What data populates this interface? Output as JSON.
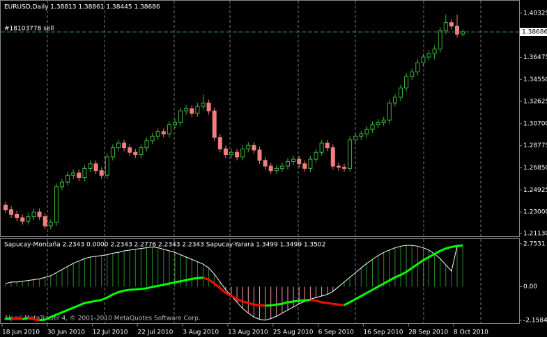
{
  "chart_data": {
    "type": "candlestick",
    "title": "EURUSD,Daily  1.38813 1.38861 1.38445 1.38686",
    "up_color": "#3cb43c",
    "down_color": "#f08080",
    "categories": [
      "18 Jun 2010",
      null,
      null,
      null,
      null,
      null,
      null,
      null,
      "30 Jun 2010",
      null,
      null,
      null,
      null,
      null,
      null,
      null,
      "12 Jul 2010",
      null,
      null,
      null,
      null,
      null,
      null,
      null,
      "22 Jul 2010",
      null,
      null,
      null,
      null,
      null,
      null,
      null,
      "3 Aug 2010",
      null,
      null,
      null,
      null,
      null,
      null,
      null,
      "13 Aug 2010",
      null,
      null,
      null,
      null,
      null,
      null,
      null,
      "25 Aug 2010",
      null,
      null,
      null,
      null,
      null,
      null,
      null,
      "6 Sep 2010",
      null,
      null,
      null,
      null,
      null,
      null,
      null,
      "16 Sep 2010",
      null,
      null,
      null,
      null,
      null,
      null,
      null,
      "28 Sep 2010",
      null,
      null,
      null,
      null,
      null,
      null,
      null,
      "8 Oct 2010",
      null
    ],
    "open": [
      1.236,
      1.232,
      1.228,
      1.225,
      1.222,
      1.226,
      1.23,
      1.226,
      1.218,
      1.221,
      1.252,
      1.256,
      1.262,
      1.264,
      1.26,
      1.268,
      1.272,
      1.266,
      1.262,
      1.278,
      1.286,
      1.29,
      1.286,
      1.282,
      1.28,
      1.286,
      1.292,
      1.296,
      1.3,
      1.298,
      1.306,
      1.308,
      1.318,
      1.32,
      1.316,
      1.322,
      1.325,
      1.318,
      1.295,
      1.285,
      1.28,
      1.282,
      1.278,
      1.285,
      1.288,
      1.284,
      1.275,
      1.27,
      1.266,
      1.268,
      1.27,
      1.274,
      1.276,
      1.272,
      1.268,
      1.276,
      1.282,
      1.29,
      1.286,
      1.27,
      1.269,
      1.268,
      1.293,
      1.296,
      1.298,
      1.302,
      1.306,
      1.308,
      1.31,
      1.325,
      1.33,
      1.338,
      1.348,
      1.352,
      1.36,
      1.365,
      1.368,
      1.372,
      1.388,
      1.395,
      1.392,
      1.385
    ],
    "high": [
      1.239,
      1.235,
      1.231,
      1.228,
      1.229,
      1.233,
      1.233,
      1.229,
      1.224,
      1.255,
      1.259,
      1.265,
      1.267,
      1.267,
      1.271,
      1.275,
      1.275,
      1.269,
      1.281,
      1.289,
      1.293,
      1.293,
      1.289,
      1.285,
      1.289,
      1.295,
      1.299,
      1.303,
      1.303,
      1.309,
      1.311,
      1.321,
      1.323,
      1.323,
      1.325,
      1.332,
      1.328,
      1.321,
      1.298,
      1.288,
      1.285,
      1.285,
      1.288,
      1.291,
      1.291,
      1.287,
      1.278,
      1.273,
      1.271,
      1.273,
      1.277,
      1.279,
      1.279,
      1.275,
      1.279,
      1.285,
      1.293,
      1.293,
      1.289,
      1.273,
      1.272,
      1.296,
      1.299,
      1.301,
      1.305,
      1.309,
      1.311,
      1.313,
      1.328,
      1.333,
      1.341,
      1.351,
      1.355,
      1.363,
      1.368,
      1.371,
      1.375,
      1.391,
      1.402,
      1.398,
      1.402,
      1.389
    ],
    "low": [
      1.229,
      1.225,
      1.222,
      1.219,
      1.219,
      1.223,
      1.223,
      1.215,
      1.215,
      1.218,
      1.249,
      1.253,
      1.259,
      1.257,
      1.257,
      1.265,
      1.263,
      1.259,
      1.259,
      1.275,
      1.283,
      1.283,
      1.279,
      1.277,
      1.277,
      1.283,
      1.289,
      1.293,
      1.295,
      1.295,
      1.303,
      1.305,
      1.315,
      1.313,
      1.313,
      1.319,
      1.315,
      1.292,
      1.282,
      1.277,
      1.277,
      1.275,
      1.275,
      1.282,
      1.281,
      1.272,
      1.267,
      1.263,
      1.263,
      1.265,
      1.267,
      1.271,
      1.269,
      1.265,
      1.265,
      1.273,
      1.279,
      1.283,
      1.267,
      1.266,
      1.265,
      1.265,
      1.29,
      1.293,
      1.295,
      1.299,
      1.303,
      1.305,
      1.307,
      1.322,
      1.327,
      1.335,
      1.345,
      1.349,
      1.357,
      1.362,
      1.363,
      1.369,
      1.385,
      1.389,
      1.382,
      1.383
    ],
    "close": [
      1.232,
      1.228,
      1.225,
      1.222,
      1.226,
      1.23,
      1.226,
      1.218,
      1.221,
      1.252,
      1.256,
      1.262,
      1.264,
      1.26,
      1.268,
      1.272,
      1.266,
      1.262,
      1.278,
      1.286,
      1.29,
      1.286,
      1.282,
      1.28,
      1.286,
      1.292,
      1.296,
      1.3,
      1.298,
      1.306,
      1.308,
      1.318,
      1.32,
      1.316,
      1.322,
      1.325,
      1.318,
      1.295,
      1.285,
      1.28,
      1.282,
      1.278,
      1.285,
      1.288,
      1.284,
      1.275,
      1.27,
      1.266,
      1.268,
      1.27,
      1.274,
      1.276,
      1.272,
      1.268,
      1.276,
      1.282,
      1.29,
      1.286,
      1.27,
      1.269,
      1.268,
      1.293,
      1.296,
      1.298,
      1.302,
      1.306,
      1.308,
      1.31,
      1.325,
      1.33,
      1.338,
      1.348,
      1.352,
      1.36,
      1.365,
      1.368,
      1.372,
      1.388,
      1.395,
      1.392,
      1.385,
      1.387
    ],
    "ylim": [
      1.2089,
      1.4141
    ],
    "yticks": [
      1.40325,
      1.36475,
      {
        "value": 1.3455,
        "label": "1.34550"
      },
      1.32625,
      {
        "value": 1.307,
        "label": "1.30700"
      },
      1.28775,
      {
        "value": 1.2685,
        "label": "1.26850"
      },
      1.24925,
      {
        "value": 1.23,
        "label": "1.23000"
      },
      {
        "value": 1.2113,
        "label": "1.21130"
      }
    ],
    "order_line": {
      "label": "#18103778 sell",
      "price": 1.38686,
      "color": "#2e8b57"
    },
    "indicator": {
      "legend": "Sapucay-Montaña 2.2343 0.0000 2.2343 2.2776 2.2343 2.2343  Sapucay-Yarara 1.3499 1.3499 1.3502",
      "copyright": "Alpari MetaTrader 4, © 2001-2010 MetaQuotes Software Corp.",
      "ylim": [
        -2.34,
        3.06
      ],
      "yticks": [
        2.7531,
        {
          "value": 0,
          "label": "0.00"
        },
        -2.1584
      ],
      "pos_color": "#2e8b2e",
      "neg_color": "#f4a0a0",
      "series": [
        {
          "name": "Sapucay-Montaña",
          "color": "#ffffff",
          "values": [
            0.2,
            0.3,
            0.3,
            0.35,
            0.4,
            0.45,
            0.5,
            0.6,
            0.7,
            0.9,
            1.1,
            1.3,
            1.5,
            1.65,
            1.8,
            1.9,
            1.95,
            2.0,
            2.05,
            2.15,
            2.2,
            2.3,
            2.35,
            2.4,
            2.45,
            2.5,
            2.55,
            2.5,
            2.4,
            2.3,
            2.2,
            2.05,
            1.9,
            1.75,
            1.6,
            1.45,
            1.2,
            0.8,
            0.3,
            -0.2,
            -0.6,
            -1.0,
            -1.4,
            -1.7,
            -1.95,
            -2.1,
            -2.15,
            -2.05,
            -1.9,
            -1.7,
            -1.5,
            -1.3,
            -1.1,
            -0.95,
            -0.8,
            -0.7,
            -0.6,
            -0.5,
            -0.3,
            0.0,
            0.3,
            0.6,
            0.9,
            1.2,
            1.5,
            1.75,
            2.0,
            2.2,
            2.35,
            2.5,
            2.6,
            2.65,
            2.65,
            2.6,
            2.5,
            2.35,
            2.1,
            1.8,
            1.4,
            1.0,
            2.6,
            2.7
          ]
        },
        {
          "name": "Sapucay-Yarara",
          "color": "#00ff00",
          "down_color": "#ff0000",
          "values": [
            -2.07,
            -2.05,
            -2.06,
            -2.08,
            -2.02,
            -2.1,
            -2.15,
            -2.12,
            -1.95,
            -1.8,
            -1.65,
            -1.5,
            -1.35,
            -1.2,
            -1.05,
            -0.98,
            -0.92,
            -0.85,
            -0.7,
            -0.5,
            -0.35,
            -0.25,
            -0.2,
            -0.18,
            -0.15,
            -0.1,
            -0.02,
            0.05,
            0.12,
            0.2,
            0.28,
            0.35,
            0.42,
            0.5,
            0.55,
            0.58,
            0.45,
            0.2,
            -0.1,
            -0.4,
            -0.6,
            -0.8,
            -0.95,
            -1.05,
            -1.15,
            -1.2,
            -1.22,
            -1.2,
            -1.15,
            -1.1,
            -1.0,
            -0.95,
            -0.9,
            -0.88,
            -0.85,
            -0.9,
            -1.0,
            -1.05,
            -1.1,
            -1.15,
            -1.18,
            -1.0,
            -0.8,
            -0.6,
            -0.4,
            -0.2,
            0.0,
            0.2,
            0.4,
            0.6,
            0.75,
            0.95,
            1.2,
            1.45,
            1.7,
            1.9,
            2.1,
            2.3,
            2.45,
            2.55,
            2.62,
            2.65
          ]
        }
      ]
    }
  }
}
